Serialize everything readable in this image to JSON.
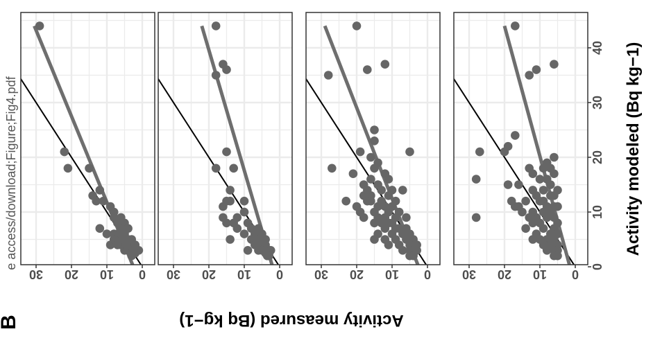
{
  "side_label": "e access/download;Figure;Fig4.pdf",
  "panel_label": "B",
  "colors": {
    "points": "#666666",
    "fit": "#6e6e6e",
    "identity": "#000000",
    "grid": "#ebebeb",
    "panel_border": "#333333"
  },
  "chart_data": {
    "type": "scatter",
    "orientation": "rotated-90-clockwise",
    "xlabel": "Activity modeled (Bq kg−1)",
    "ylabel": "Activity measured (Bq kg−1)",
    "xlim": [
      0,
      45
    ],
    "ylim": [
      0,
      37
    ],
    "x_ticks": [
      "0",
      "10",
      "20",
      "30",
      "40"
    ],
    "y_ticks": [
      "0",
      "10",
      "20",
      "30"
    ],
    "grid": true,
    "identity_line": true,
    "panels": [
      {
        "fit": {
          "x": [
            0,
            44
          ],
          "y": [
            2.5,
            30.5
          ]
        },
        "points": [
          [
            44,
            29
          ],
          [
            21,
            22
          ],
          [
            18,
            21
          ],
          [
            18,
            15
          ],
          [
            14,
            12
          ],
          [
            13,
            14
          ],
          [
            12,
            13
          ],
          [
            12,
            11
          ],
          [
            11,
            9
          ],
          [
            10,
            8
          ],
          [
            9,
            6
          ],
          [
            9,
            8
          ],
          [
            8,
            5
          ],
          [
            8,
            6
          ],
          [
            8,
            7
          ],
          [
            7,
            4
          ],
          [
            7,
            6
          ],
          [
            7,
            12
          ],
          [
            6,
            7
          ],
          [
            6,
            5
          ],
          [
            6,
            10
          ],
          [
            6,
            8
          ],
          [
            5,
            4
          ],
          [
            5,
            3
          ],
          [
            5,
            6
          ],
          [
            5,
            7
          ],
          [
            4,
            3
          ],
          [
            4,
            5
          ],
          [
            4,
            6
          ],
          [
            4,
            9
          ],
          [
            4,
            2
          ],
          [
            3,
            2
          ],
          [
            3,
            3
          ],
          [
            3,
            4
          ],
          [
            3,
            5
          ],
          [
            3,
            1
          ],
          [
            3,
            2.5
          ],
          [
            2.5,
            2
          ],
          [
            2.5,
            3
          ],
          [
            2,
            3
          ],
          [
            4,
            4.5
          ],
          [
            5,
            5.5
          ],
          [
            6,
            6
          ],
          [
            5,
            8
          ],
          [
            4,
            7
          ]
        ]
      },
      {
        "fit": {
          "x": [
            0,
            44
          ],
          "y": [
            2,
            22
          ]
        },
        "points": [
          [
            44,
            18
          ],
          [
            37,
            16
          ],
          [
            36,
            15
          ],
          [
            35,
            18
          ],
          [
            21,
            15
          ],
          [
            18,
            18
          ],
          [
            18,
            13
          ],
          [
            14,
            14
          ],
          [
            12,
            10
          ],
          [
            12,
            15
          ],
          [
            12,
            14
          ],
          [
            11,
            16
          ],
          [
            10,
            10
          ],
          [
            9,
            12
          ],
          [
            9,
            16
          ],
          [
            8,
            15
          ],
          [
            8,
            13
          ],
          [
            8,
            9
          ],
          [
            7,
            12
          ],
          [
            7,
            8
          ],
          [
            6,
            10
          ],
          [
            6,
            7
          ],
          [
            6,
            6
          ],
          [
            5,
            14
          ],
          [
            5,
            8
          ],
          [
            5,
            7
          ],
          [
            5,
            5
          ],
          [
            5,
            4
          ],
          [
            4,
            6
          ],
          [
            4,
            5
          ],
          [
            4,
            4
          ],
          [
            3,
            9
          ],
          [
            3,
            5
          ],
          [
            3,
            4
          ],
          [
            3,
            3
          ],
          [
            3,
            2.5
          ],
          [
            2.5,
            3
          ],
          [
            2.5,
            4
          ],
          [
            2,
            3
          ],
          [
            2,
            3.5
          ],
          [
            3,
            6
          ],
          [
            4,
            7
          ],
          [
            6,
            5
          ],
          [
            7,
            6
          ]
        ]
      },
      {
        "fit": {
          "x": [
            0,
            44
          ],
          "y": [
            2.5,
            29
          ]
        },
        "points": [
          [
            44,
            20
          ],
          [
            37,
            12
          ],
          [
            36,
            17
          ],
          [
            35,
            28
          ],
          [
            25,
            15
          ],
          [
            23,
            15
          ],
          [
            21,
            19
          ],
          [
            21,
            5
          ],
          [
            20,
            16
          ],
          [
            19,
            14
          ],
          [
            18,
            27
          ],
          [
            18,
            15
          ],
          [
            17,
            12
          ],
          [
            17,
            21
          ],
          [
            16,
            11
          ],
          [
            16,
            16
          ],
          [
            15,
            18
          ],
          [
            15,
            14
          ],
          [
            14,
            13
          ],
          [
            14,
            10
          ],
          [
            14,
            7
          ],
          [
            13,
            11
          ],
          [
            13,
            16
          ],
          [
            12,
            13
          ],
          [
            12,
            17
          ],
          [
            12,
            9
          ],
          [
            12,
            23
          ],
          [
            11,
            14
          ],
          [
            11,
            10
          ],
          [
            11,
            12
          ],
          [
            10,
            15
          ],
          [
            10,
            11
          ],
          [
            10,
            8
          ],
          [
            10,
            19
          ],
          [
            9,
            12
          ],
          [
            9,
            14
          ],
          [
            9,
            9
          ],
          [
            9,
            6
          ],
          [
            9,
            18
          ],
          [
            8,
            10
          ],
          [
            8,
            13
          ],
          [
            8,
            15
          ],
          [
            8,
            11
          ],
          [
            7,
            9
          ],
          [
            7,
            12
          ],
          [
            7,
            8
          ],
          [
            7,
            6
          ],
          [
            6,
            10
          ],
          [
            6,
            14
          ],
          [
            6,
            7
          ],
          [
            6,
            5
          ],
          [
            5,
            9
          ],
          [
            5,
            12
          ],
          [
            5,
            6
          ],
          [
            5,
            4
          ],
          [
            5,
            15
          ],
          [
            4,
            8
          ],
          [
            4,
            11
          ],
          [
            4,
            5
          ],
          [
            4,
            3
          ],
          [
            3,
            7
          ],
          [
            3,
            5
          ],
          [
            3,
            4
          ],
          [
            3,
            3
          ],
          [
            2,
            5
          ],
          [
            2,
            4
          ],
          [
            13,
            18
          ],
          [
            14,
            17
          ],
          [
            11,
            20
          ],
          [
            12,
            16
          ]
        ]
      },
      {
        "fit": {
          "x": [
            0,
            44
          ],
          "y": [
            1.5,
            20
          ]
        },
        "points": [
          [
            44,
            17
          ],
          [
            37,
            6
          ],
          [
            36,
            11
          ],
          [
            35,
            13
          ],
          [
            24,
            17
          ],
          [
            22,
            19
          ],
          [
            21,
            27
          ],
          [
            21,
            20
          ],
          [
            20,
            6
          ],
          [
            19,
            8
          ],
          [
            18,
            7
          ],
          [
            18,
            13
          ],
          [
            18,
            9
          ],
          [
            17,
            6
          ],
          [
            17,
            37
          ],
          [
            17,
            12
          ],
          [
            16,
            10
          ],
          [
            16,
            8
          ],
          [
            15,
            16
          ],
          [
            15,
            7
          ],
          [
            14,
            5
          ],
          [
            14,
            9
          ],
          [
            14,
            12
          ],
          [
            13,
            11
          ],
          [
            13,
            7
          ],
          [
            13,
            6
          ],
          [
            12,
            9
          ],
          [
            12,
            14
          ],
          [
            12,
            10
          ],
          [
            11,
            8
          ],
          [
            11,
            17
          ],
          [
            11,
            5
          ],
          [
            11,
            6
          ],
          [
            10,
            9
          ],
          [
            10,
            15
          ],
          [
            10,
            7
          ],
          [
            9,
            8
          ],
          [
            9,
            28
          ],
          [
            9,
            11
          ],
          [
            9,
            6
          ],
          [
            8,
            5
          ],
          [
            8,
            12
          ],
          [
            8,
            10
          ],
          [
            8,
            38
          ],
          [
            7,
            9
          ],
          [
            7,
            6
          ],
          [
            7,
            14
          ],
          [
            6,
            7
          ],
          [
            6,
            11
          ],
          [
            6,
            5
          ],
          [
            5,
            8
          ],
          [
            5,
            10
          ],
          [
            5,
            6
          ],
          [
            5,
            12
          ],
          [
            4,
            7
          ],
          [
            4,
            9
          ],
          [
            4,
            5
          ],
          [
            3,
            6
          ],
          [
            3,
            8
          ],
          [
            3,
            5
          ],
          [
            2,
            6
          ],
          [
            2,
            5
          ],
          [
            15,
            19
          ],
          [
            16,
            28
          ],
          [
            11,
            16
          ],
          [
            12,
            18
          ],
          [
            9,
            13
          ],
          [
            10,
            12
          ]
        ]
      }
    ]
  }
}
